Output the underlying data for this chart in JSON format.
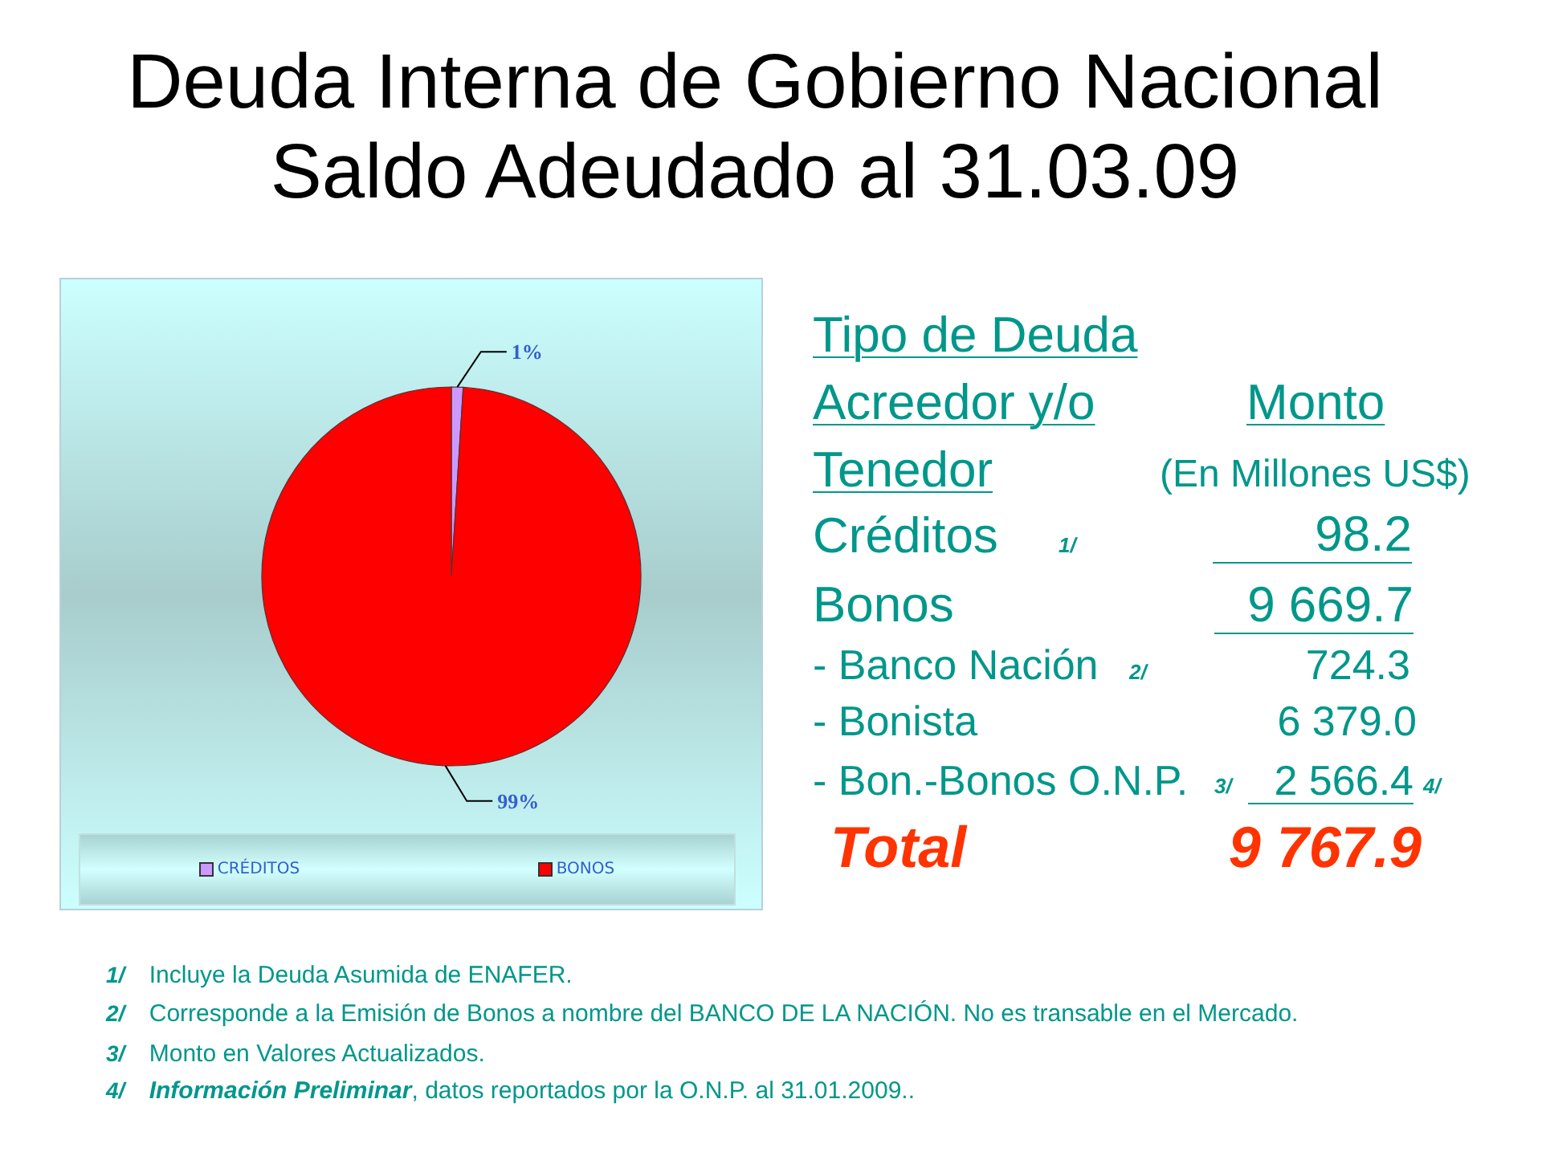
{
  "chart_data": [
    {
      "type": "pie",
      "title": "Deuda Interna de Gobierno Nacional",
      "subtitle": "Saldo Adeudado al 31.03.09",
      "categories": [
        "CRÉDITOS",
        "BONOS"
      ],
      "values": [
        1,
        99
      ],
      "colors": [
        "#cc99ff",
        "#ff0000"
      ],
      "value_labels": [
        "1%",
        "99%"
      ],
      "legend": "bottom"
    },
    {
      "type": "other",
      "annotations": [
        "Tipo de Deuda",
        "Acreedor y/o",
        "Monto",
        "Tenedor",
        "(En Millones US$)",
        "Créditos",
        "1/",
        "98.2",
        "Bonos",
        "9 669.7",
        "- Banco Nación",
        "2/",
        "724.3",
        "- Bonista",
        "6 379.0",
        "- Bon.-Bonos O.N.P.",
        "3/",
        "2 566.4",
        "4/",
        "Total",
        "9 767.9",
        "1/ Incluye la Deuda Asumida de ENAFER.",
        "2/ Corresponde a la Emisión de Bonos a nombre del BANCO DE LA NACIÓN. No es transable en el Mercado.",
        "3/ Monto en Valores Actualizados.",
        "4/ Información Preliminar",
        ", datos reportados por la O.N.P. al 31.01.2009.."
      ]
    }
  ]
}
